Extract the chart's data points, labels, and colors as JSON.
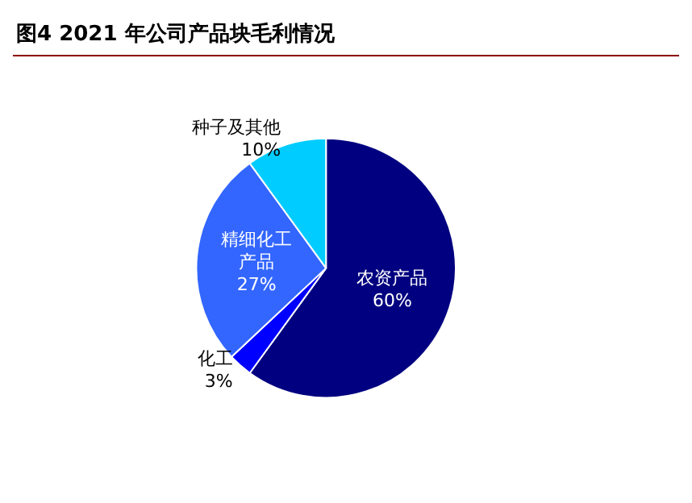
{
  "chart_data": {
    "type": "pie",
    "title": "图4  2021 年公司产品块毛利情况",
    "categories": [
      "农资产品",
      "化工",
      "精细化工产品",
      "种子及其他"
    ],
    "values": [
      60,
      3,
      27,
      10
    ],
    "colors": [
      "#000080",
      "#0000ff",
      "#3366ff",
      "#00ccff"
    ],
    "value_labels": [
      "60%",
      "3%",
      "27%",
      "10%"
    ],
    "legend": false
  }
}
